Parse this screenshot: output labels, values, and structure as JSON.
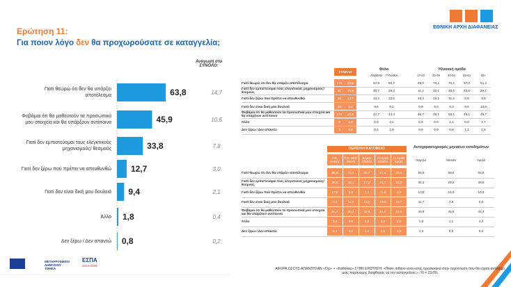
{
  "header": {
    "question_number": "Ερώτηση 11:",
    "question": [
      "Για ποιον λόγο ",
      "δεν",
      " θα προχωρούσατε σε καταγγελία;"
    ]
  },
  "logo": {
    "text": "ΕΘΝΙΚΗ ΑΡΧΗ ΔΙΑΦΑΝΕΙΑΣ"
  },
  "chart_data": {
    "type": "bar",
    "orientation": "horizontal",
    "color": "#1e9be0",
    "categories": [
      "Γιατί θεωρώ ότι δεν θα υπάρξει αποτέλεσμα",
      "Φοβάμαι ότι θα μαθευτούν τα προσωπικά μου στοιχεία και θα υπάρξουν αντίποινα",
      "Γιατί δεν εμπιστεύομαι τους ελεγκτικούς μηχανισμούς/ θεσμούς",
      "Γιατί δεν ξέρω πού πρέπει να απευθυνθώ",
      "Γιατί δεν είναι δική μου δουλειά",
      "Άλλο",
      "Δεν ξέρω / Δεν απαντώ"
    ],
    "values": [
      63.8,
      45.9,
      33.8,
      12.7,
      9.4,
      1.8,
      0.8
    ],
    "value_labels": [
      "63,8",
      "45,9",
      "33,8",
      "12,7",
      "9,4",
      "1,8",
      "0,8"
    ]
  },
  "total_projection": {
    "title": "Αναγωγή στο ΣΥΝΟΛΟ:",
    "labels": [
      "14,7",
      "10,6",
      "7,8",
      "3,0",
      "2,1",
      "0,4",
      "0,2"
    ]
  },
  "table_1": {
    "total_header": "ΣΥΝΟΛΟ",
    "groups": [
      {
        "title": "Φύλο",
        "columns": [
          "ΑΝΔΡΑΣ",
          "ΓΥΝΑΙΚΑ"
        ]
      },
      {
        "title": "Ηλικιακή ομάδα",
        "columns": [
          "17-24",
          "25-39",
          "40-54",
          "55-64",
          "65+"
        ]
      }
    ],
    "rows": [
      [
        "Γιατί θεωρώ ότι δεν θα υπάρξει αποτέλεσμα",
        "171",
        "63,8",
        "67,8",
        "60,7",
        "89,0",
        "70,1",
        "70,2",
        "57,0",
        "51,4"
      ],
      [
        "Γιατί δεν εμπιστεύομαι τους ελεγκτικούς μηχανισμούς/ θεσμούς",
        "91",
        "33,8",
        "40,7",
        "28,3",
        "11,2",
        "40,1",
        "36,5",
        "43,0",
        "29,7"
      ],
      [
        "Γιατί δεν ξέρω πού πρέπει να απευθυνθώ",
        "34",
        "12,7",
        "13,3",
        "12,5",
        "33,3",
        "15,1",
        "11,3",
        "5,6",
        "9,6"
      ],
      [
        "Γιατί δεν είναι δική μου δουλειά",
        "25",
        "9,4",
        "9,6",
        "9,2",
        "0,0",
        "8,0",
        "9,3",
        "9,6",
        "13,0"
      ],
      [
        "Φοβάμαι ότι θα μαθευτούν τα προσωπικά μου στοιχεία και θα υπάρξουν αντίποινα",
        "123",
        "45,9",
        "47,7",
        "44,4",
        "66,7",
        "48,1",
        "55,1",
        "45,1",
        "45,7"
      ],
      [
        "Άλλο",
        "5",
        "1,8",
        "0,0",
        "3,2",
        "0,0",
        "0,0",
        "1,4",
        "0,0",
        "4,7"
      ],
      [
        "Δεν ξέρω / Δεν απαντώ",
        "2",
        "0,8",
        "0,5",
        "1,0",
        "0,0",
        "0,0",
        "0,0",
        "1,1",
        "1,9"
      ]
    ]
  },
  "table_2": {
    "groups": [
      {
        "title": "ΠΕΡΙΟΧΗ ΚΑΤΟΙΚΙΑΣ",
        "columns": [
          "Π.Ε. Αττικής",
          "Π.Ε. ΘΕΣ/ΝΙΚΗΣ",
          "Βόρεια Ελλάδα",
          "Κεντρική Ελλάδα",
          "Ν. Αιγαίο Κρήτη"
        ]
      },
      {
        "title": "Αυτοχαρακτηρισμός μηνιαίων εισοδημάτων",
        "columns": [
          "Χαμηλό",
          "Μεσαίο",
          "Υψηλό"
        ]
      }
    ],
    "rows": [
      [
        "Γιατί θεωρώ ότι δεν θα υπάρξει αποτέλεσμα",
        "69,8",
        "70,6",
        "69,7",
        "57,3",
        "48,4",
        "66,5",
        "58,5",
        "63,5"
      ],
      [
        "Γιατί δεν εμπιστεύομαι τους ελεγκτικούς μηχανισμούς/ θεσμούς",
        "36,5",
        "38,1",
        "17,2",
        "41,7",
        "35,3",
        "34,3",
        "29,9",
        "39,8"
      ],
      [
        "Γιατί δεν ξέρω πού πρέπει να απευθυνθώ",
        "17,0",
        "9,8",
        "7,3",
        "11,5",
        "4,9",
        "13,5",
        "10,3",
        "10,3"
      ],
      [
        "Γιατί δεν είναι δική μου δουλειά",
        "3,2",
        "11,9",
        "13,5",
        "18,0",
        "18,7",
        "11,7",
        "7,9",
        "0,0"
      ],
      [
        "Φοβάμαι ότι θα μαθευτούν τα προσωπικά μου στοιχεία και θα υπάρξουν αντίποινα",
        "51,7",
        "30,2",
        "32,5",
        "51,7",
        "42,2",
        "45,9",
        "45,5",
        "43,4"
      ],
      [
        "Άλλο",
        "0,8",
        "0,0",
        "5,9",
        "0,0",
        "5,9",
        "1,8",
        "1,1",
        "4,4"
      ],
      [
        "Δεν ξέρω / Δεν απαντώ",
        "0,3",
        "0,0",
        "1,2",
        "0,0",
        "4,9",
        "1,3",
        "0,0",
        "0,0"
      ]
    ]
  },
  "footer": {
    "note": "ΑΦΟΡΑ ΟΣΟΥΣ ΑΠΑΝΤΗΣΑΝ «Όχι» + «Καθόλου» ΣΤΗΝ ΕΡΩΤΗΣΗ: «Πόσο πιθανό είναι εσείς προσωπικά στην περίπτωση που θα είχατε αντίληψη μιας παράνομης διαφθοράς να την καταγγείλετε;» / N = 23,0%",
    "logos": [
      "ΜΕΤΑΡΡΥΘΜΙΣΗ ΔΗΜΟΣΙΟΥ ΤΟΜΕΑ",
      "ΕΣΠΑ",
      "2014-2020"
    ]
  }
}
